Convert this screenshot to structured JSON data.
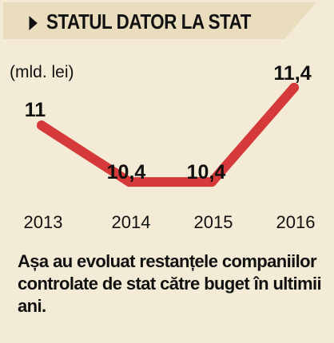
{
  "header": {
    "title": "STATUL DATOR LA STAT"
  },
  "chart_data": {
    "type": "line",
    "title": "STATUL DATOR LA STAT",
    "ylabel": "(mld. lei)",
    "categories": [
      "2013",
      "2014",
      "2015",
      "2016"
    ],
    "series": [
      {
        "values": [
          11,
          10.4,
          10.4,
          11.4
        ],
        "labels": [
          "11",
          "10,4",
          "10,4",
          "11,4"
        ]
      }
    ],
    "line_color": "#d6393a",
    "ylim": [
      10.3,
      11.5
    ],
    "grid": false,
    "legend": "none"
  },
  "caption": "Așa au evoluat restanțele compani­ilor controlate de stat către buget în ultimii ani."
}
